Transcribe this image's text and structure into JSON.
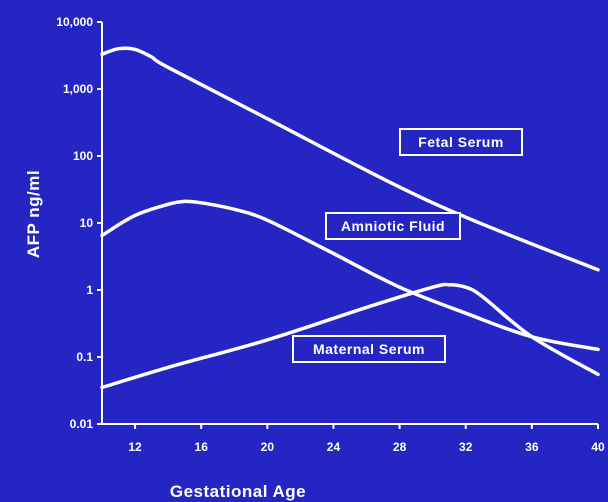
{
  "chart_data": {
    "type": "line",
    "title": "",
    "xlabel": "Gestational Age",
    "ylabel": "AFP ng/ml",
    "yscale": "log",
    "xlim": [
      10,
      40
    ],
    "ylim": [
      0.01,
      10000
    ],
    "x_ticks": [
      12,
      16,
      20,
      24,
      28,
      32,
      36,
      40
    ],
    "x_tick_labels": [
      "12",
      "16",
      "20",
      "24",
      "28",
      "32",
      "36",
      "40"
    ],
    "y_ticks": [
      0.01,
      0.1,
      1,
      10,
      100,
      1000,
      10000
    ],
    "y_tick_labels": [
      "0.01",
      "0.1",
      "1",
      "10",
      "100",
      "1,000",
      "10,000"
    ],
    "grid": false,
    "colors": {
      "background": "#2525c4",
      "foreground": "#ffffff"
    },
    "series": [
      {
        "name": "Fetal Serum",
        "x": [
          10,
          11,
          12,
          13,
          14,
          20,
          30,
          40
        ],
        "y": [
          3300,
          4000,
          3900,
          3000,
          2100,
          360,
          20,
          2
        ]
      },
      {
        "name": "Amniotic Fluid",
        "x": [
          10,
          12,
          14,
          15,
          16,
          18,
          20,
          24,
          28,
          32,
          36,
          40
        ],
        "y": [
          6.5,
          13,
          19,
          21,
          20,
          16,
          11,
          3.5,
          1.1,
          0.45,
          0.2,
          0.13
        ]
      },
      {
        "name": "Maternal Serum",
        "x": [
          10,
          14,
          20,
          26,
          30,
          31,
          32,
          33,
          36,
          40
        ],
        "y": [
          0.035,
          0.07,
          0.18,
          0.55,
          1.1,
          1.2,
          1.1,
          0.8,
          0.2,
          0.055
        ]
      }
    ]
  }
}
